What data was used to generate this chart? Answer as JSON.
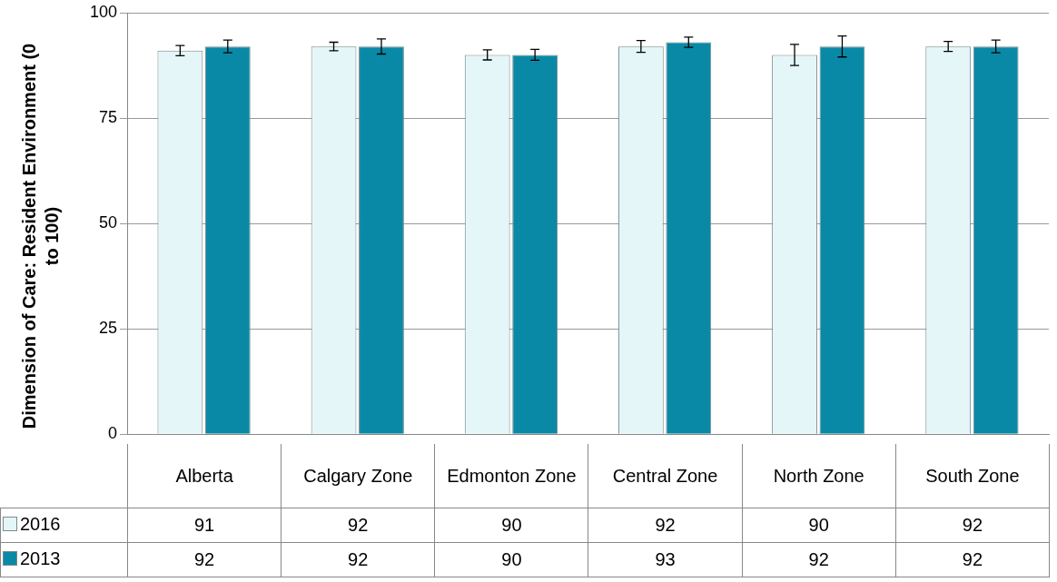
{
  "chart_data": {
    "type": "bar",
    "ylabel": "Dimension of Care: Resident Environment (0 to 100)",
    "categories": [
      "Alberta",
      "Calgary Zone",
      "Edmonton Zone",
      "Central Zone",
      "North Zone",
      "South Zone"
    ],
    "series": [
      {
        "name": "2016",
        "color": "#e4f6f8",
        "values": [
          91,
          92,
          90,
          92,
          90,
          92
        ],
        "errors": [
          1.2,
          1,
          1.2,
          1.4,
          2.5,
          1.2
        ]
      },
      {
        "name": "2013",
        "color": "#0a89a6",
        "values": [
          92,
          92,
          90,
          93,
          92,
          92
        ],
        "errors": [
          1.5,
          1.8,
          1.3,
          1.2,
          2.5,
          1.5
        ]
      }
    ],
    "ylim": [
      0,
      100
    ],
    "yticks": [
      0,
      25,
      50,
      75,
      100
    ],
    "grid": "y",
    "legend": "bottom left",
    "data_labels": true
  }
}
